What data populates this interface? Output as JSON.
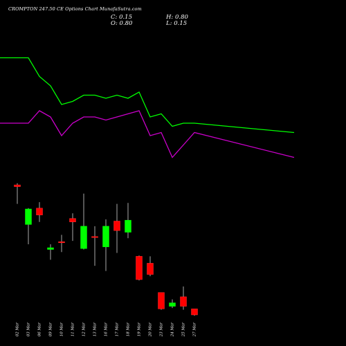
{
  "header": {
    "title": "CROMPTON 247.50 CE Options Chart MunafaSutra.com",
    "close_text": "C: 0.15",
    "open_text": "O: 0.80",
    "high_text": "H: 0.80",
    "low_text": "L: 0.15"
  },
  "colors": {
    "background": "#000000",
    "up": "#00ff00",
    "down": "#ff0000",
    "upper_line": "#00ff00",
    "lower_line": "#cc00cc",
    "text": "#ffffff",
    "wick": "#aaaaaa"
  },
  "chart_data": {
    "type": "candlestick",
    "title": "CROMPTON 247.50 CE Options Chart MunafaSutra.com",
    "categories": [
      "02 Mar",
      "03 Mar",
      "06 Mar",
      "09 Mar",
      "10 Mar",
      "11 Mar",
      "12 Mar",
      "13 Mar",
      "16 Mar",
      "17 Mar",
      "18 Mar",
      "19 Mar",
      "20 Mar",
      "23 Mar",
      "24 Mar",
      "25 Mar",
      "27 Mar"
    ],
    "candles": [
      {
        "date": "02 Mar",
        "open": 18.0,
        "high": 18.2,
        "low": 15.8,
        "close": 17.8
      },
      {
        "date": "03 Mar",
        "open": 13.4,
        "high": 15.3,
        "low": 11.1,
        "close": 15.2
      },
      {
        "date": "06 Mar",
        "open": 15.3,
        "high": 16.0,
        "low": 13.7,
        "close": 14.5
      },
      {
        "date": "09 Mar",
        "open": 10.5,
        "high": 11.1,
        "low": 9.3,
        "close": 10.7
      },
      {
        "date": "10 Mar",
        "open": 11.4,
        "high": 12.2,
        "low": 10.2,
        "close": 11.3
      },
      {
        "date": "11 Mar",
        "open": 14.1,
        "high": 14.7,
        "low": 11.5,
        "close": 13.7
      },
      {
        "date": "12 Mar",
        "open": 10.6,
        "high": 17.0,
        "low": 10.5,
        "close": 13.2
      },
      {
        "date": "13 Mar",
        "open": 12.0,
        "high": 13.2,
        "low": 8.6,
        "close": 11.9
      },
      {
        "date": "16 Mar",
        "open": 10.8,
        "high": 14.0,
        "low": 8.0,
        "close": 13.2
      },
      {
        "date": "17 Mar",
        "open": 13.8,
        "high": 15.8,
        "low": 10.1,
        "close": 12.7
      },
      {
        "date": "18 Mar",
        "open": 12.5,
        "high": 15.9,
        "low": 11.8,
        "close": 13.9
      },
      {
        "date": "19 Mar",
        "open": 9.7,
        "high": 9.8,
        "low": 6.9,
        "close": 7.0
      },
      {
        "date": "20 Mar",
        "open": 8.9,
        "high": 9.7,
        "low": 7.4,
        "close": 7.6
      },
      {
        "date": "23 Mar",
        "open": 5.5,
        "high": 5.5,
        "low": 3.5,
        "close": 3.6
      },
      {
        "date": "24 Mar",
        "open": 3.9,
        "high": 4.7,
        "low": 3.7,
        "close": 4.3
      },
      {
        "date": "25 Mar",
        "open": 5.0,
        "high": 6.2,
        "low": 3.5,
        "close": 3.9
      },
      {
        "date": "27 Mar",
        "open": 3.6,
        "high": 3.6,
        "low": 2.8,
        "close": 2.9
      }
    ],
    "upper_line": [
      62,
      62,
      56,
      53,
      47,
      48,
      50,
      50,
      49,
      50,
      49,
      51,
      43,
      44,
      40,
      41,
      41
    ],
    "lower_line": [
      41,
      41,
      45,
      43,
      37,
      41,
      43,
      43,
      42,
      43,
      44,
      45,
      37,
      38,
      30,
      34,
      38
    ],
    "upper_line_extra": 38,
    "lower_line_extra": 30
  }
}
